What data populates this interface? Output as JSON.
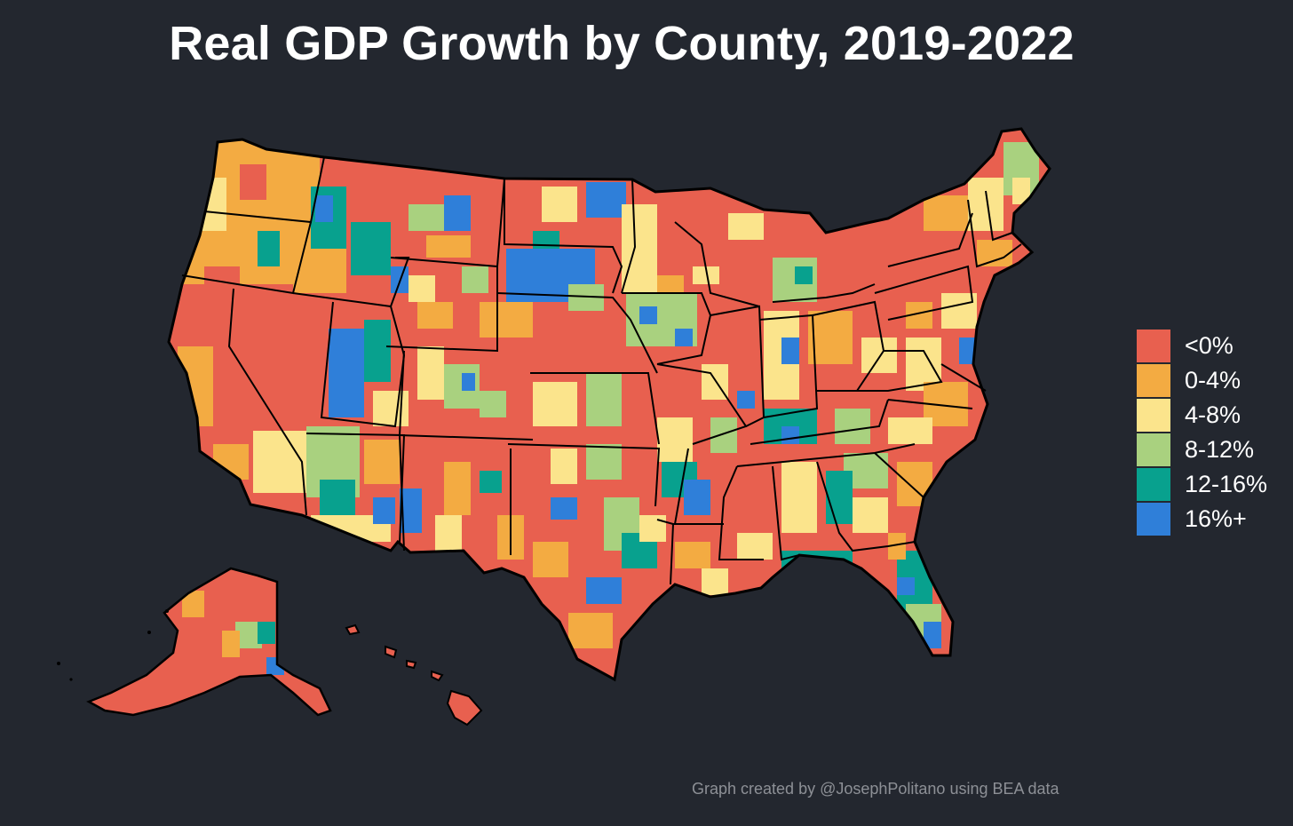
{
  "title": "Real GDP Growth by County, 2019-2022",
  "legend": [
    {
      "label": "<0%",
      "color": "#e8604f"
    },
    {
      "label": "0-4%",
      "color": "#f3ab42"
    },
    {
      "label": "4-8%",
      "color": "#fbe48c"
    },
    {
      "label": "8-12%",
      "color": "#a9d17f"
    },
    {
      "label": "12-16%",
      "color": "#08a18e"
    },
    {
      "label": "16%+",
      "color": "#2f7fd9"
    }
  ],
  "credit": "Graph created by @JosephPolitano using BEA data",
  "map": {
    "background": "#23272f",
    "border_color": "#000000"
  }
}
